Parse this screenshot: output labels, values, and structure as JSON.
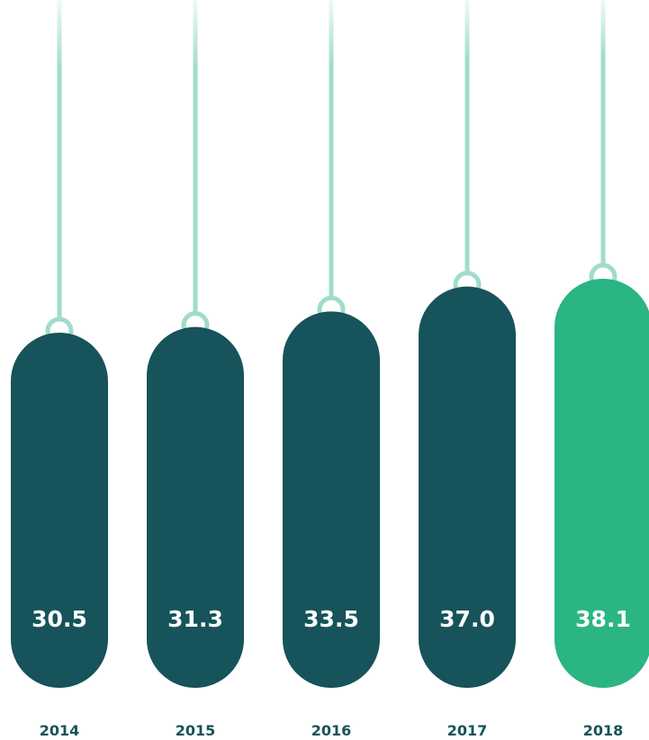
{
  "chart_data": {
    "type": "bar",
    "categories": [
      "2014",
      "2015",
      "2016",
      "2017",
      "2018"
    ],
    "values": [
      30.5,
      31.3,
      33.5,
      37.0,
      38.1
    ],
    "value_labels": [
      "30.5",
      "31.3",
      "33.5",
      "37.0",
      "38.1"
    ],
    "highlight_index": 4,
    "title": "",
    "xlabel": "",
    "ylabel": "",
    "grid": false,
    "legend": "none",
    "colors": {
      "bar": "#17535a",
      "highlight": "#2bb583",
      "string": "#9fdccb",
      "label": "#17535a",
      "value_text": "#ffffff"
    }
  }
}
